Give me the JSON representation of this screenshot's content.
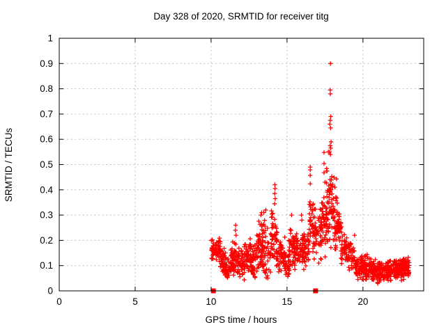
{
  "page": {
    "title": "Day 328 of 2020, SRMTID for receiver titg"
  },
  "chart_data": {
    "type": "scatter",
    "title": "Day 328 of 2020, SRMTID for receiver titg",
    "xlabel": "GPS time / hours",
    "ylabel": "SRMTID / TECUs",
    "xlim": [
      0,
      24
    ],
    "ylim": [
      0,
      1
    ],
    "xticks": [
      0,
      5,
      10,
      15,
      20
    ],
    "xtick_labels": [
      "0",
      "5",
      "10",
      "15",
      "20"
    ],
    "yticks": [
      0,
      0.1,
      0.2,
      0.3,
      0.4,
      0.5,
      0.6,
      0.7,
      0.8,
      0.9,
      1
    ],
    "ytick_labels": [
      "0",
      "0.1",
      "0.2",
      "0.3",
      "0.4",
      "0.5",
      "0.6",
      "0.7",
      "0.8",
      "0.9",
      "1"
    ],
    "grid": true,
    "grid_style": "dashed",
    "legend": "none",
    "marker": "plus",
    "colors": {
      "series": "#ff0000",
      "grid": "#bcbcbc",
      "axis": "#000000",
      "background": "#ffffff"
    },
    "baseline_squares": [
      [
        10.15,
        0
      ],
      [
        16.88,
        0
      ]
    ],
    "outlier_points": [
      [
        17.86,
        0.9
      ],
      [
        17.84,
        0.795
      ],
      [
        17.85,
        0.78
      ],
      [
        17.88,
        0.69
      ],
      [
        17.84,
        0.675
      ],
      [
        17.82,
        0.66
      ],
      [
        17.87,
        0.645
      ],
      [
        17.9,
        0.59
      ],
      [
        17.84,
        0.575
      ],
      [
        17.88,
        0.565
      ],
      [
        17.8,
        0.55
      ],
      [
        17.72,
        0.55
      ],
      [
        17.86,
        0.54
      ],
      [
        17.44,
        0.548
      ],
      [
        17.44,
        0.504
      ],
      [
        17.62,
        0.474
      ],
      [
        17.44,
        0.468
      ],
      [
        17.5,
        0.43
      ],
      [
        16.53,
        0.49
      ],
      [
        16.53,
        0.479
      ],
      [
        16.53,
        0.457
      ],
      [
        16.53,
        0.424
      ],
      [
        18.1,
        0.449
      ],
      [
        18.26,
        0.443
      ],
      [
        17.9,
        0.4
      ],
      [
        18.15,
        0.41
      ],
      [
        14.2,
        0.42
      ],
      [
        14.21,
        0.405
      ],
      [
        14.19,
        0.385
      ],
      [
        14.22,
        0.365
      ],
      [
        14.18,
        0.345
      ],
      [
        11.62,
        0.26
      ],
      [
        11.6,
        0.24
      ],
      [
        11.64,
        0.22
      ],
      [
        13.28,
        0.3
      ],
      [
        13.33,
        0.31
      ],
      [
        13.47,
        0.31
      ],
      [
        13.6,
        0.32
      ],
      [
        15.3,
        0.3
      ],
      [
        15.95,
        0.3
      ],
      [
        15.98,
        0.28
      ],
      [
        19.45,
        0.22
      ]
    ],
    "density_bands": [
      {
        "x0": 10.0,
        "x1": 10.35,
        "n": 30,
        "ymin": 0.11,
        "ymax": 0.225
      },
      {
        "x0": 10.3,
        "x1": 10.65,
        "n": 30,
        "ymin": 0.1,
        "ymax": 0.22
      },
      {
        "x0": 10.6,
        "x1": 10.95,
        "n": 35,
        "ymin": 0.05,
        "ymax": 0.18
      },
      {
        "x0": 10.9,
        "x1": 11.35,
        "n": 40,
        "ymin": 0.03,
        "ymax": 0.13
      },
      {
        "x0": 11.3,
        "x1": 11.7,
        "n": 45,
        "ymin": 0.06,
        "ymax": 0.2
      },
      {
        "x0": 11.7,
        "x1": 12.25,
        "n": 55,
        "ymin": 0.04,
        "ymax": 0.18
      },
      {
        "x0": 12.2,
        "x1": 12.6,
        "n": 40,
        "ymin": 0.06,
        "ymax": 0.22
      },
      {
        "x0": 12.55,
        "x1": 13.05,
        "n": 50,
        "ymin": 0.03,
        "ymax": 0.2
      },
      {
        "x0": 13.0,
        "x1": 13.4,
        "n": 45,
        "ymin": 0.06,
        "ymax": 0.28
      },
      {
        "x0": 13.35,
        "x1": 13.95,
        "n": 55,
        "ymin": 0.03,
        "ymax": 0.3
      },
      {
        "x0": 13.95,
        "x1": 14.35,
        "n": 45,
        "ymin": 0.1,
        "ymax": 0.33
      },
      {
        "x0": 14.3,
        "x1": 14.9,
        "n": 55,
        "ymin": 0.06,
        "ymax": 0.22
      },
      {
        "x0": 14.85,
        "x1": 15.15,
        "n": 28,
        "ymin": 0.04,
        "ymax": 0.16
      },
      {
        "x0": 15.1,
        "x1": 15.55,
        "n": 45,
        "ymin": 0.08,
        "ymax": 0.27
      },
      {
        "x0": 15.5,
        "x1": 16.05,
        "n": 55,
        "ymin": 0.09,
        "ymax": 0.25
      },
      {
        "x0": 16.0,
        "x1": 16.45,
        "n": 50,
        "ymin": 0.08,
        "ymax": 0.26
      },
      {
        "x0": 16.45,
        "x1": 16.72,
        "n": 28,
        "ymin": 0.14,
        "ymax": 0.38
      },
      {
        "x0": 16.7,
        "x1": 17.3,
        "n": 60,
        "ymin": 0.1,
        "ymax": 0.36
      },
      {
        "x0": 17.25,
        "x1": 17.65,
        "n": 50,
        "ymin": 0.12,
        "ymax": 0.42
      },
      {
        "x0": 17.6,
        "x1": 18.05,
        "n": 55,
        "ymin": 0.14,
        "ymax": 0.5
      },
      {
        "x0": 18.0,
        "x1": 18.35,
        "n": 40,
        "ymin": 0.14,
        "ymax": 0.4
      },
      {
        "x0": 18.3,
        "x1": 18.6,
        "n": 38,
        "ymin": 0.19,
        "ymax": 0.33
      },
      {
        "x0": 18.55,
        "x1": 19.05,
        "n": 42,
        "ymin": 0.1,
        "ymax": 0.24
      },
      {
        "x0": 19.0,
        "x1": 19.5,
        "n": 42,
        "ymin": 0.07,
        "ymax": 0.2
      },
      {
        "x0": 19.45,
        "x1": 19.95,
        "n": 48,
        "ymin": 0.03,
        "ymax": 0.14
      },
      {
        "x0": 19.9,
        "x1": 20.55,
        "n": 75,
        "ymin": 0.03,
        "ymax": 0.16
      },
      {
        "x0": 20.5,
        "x1": 21.1,
        "n": 75,
        "ymin": 0.025,
        "ymax": 0.13
      },
      {
        "x0": 21.05,
        "x1": 21.7,
        "n": 75,
        "ymin": 0.03,
        "ymax": 0.12
      },
      {
        "x0": 21.65,
        "x1": 22.3,
        "n": 75,
        "ymin": 0.035,
        "ymax": 0.125
      },
      {
        "x0": 22.25,
        "x1": 22.7,
        "n": 60,
        "ymin": 0.04,
        "ymax": 0.13
      },
      {
        "x0": 22.65,
        "x1": 23.05,
        "n": 55,
        "ymin": 0.05,
        "ymax": 0.135
      }
    ],
    "seed": 328
  }
}
